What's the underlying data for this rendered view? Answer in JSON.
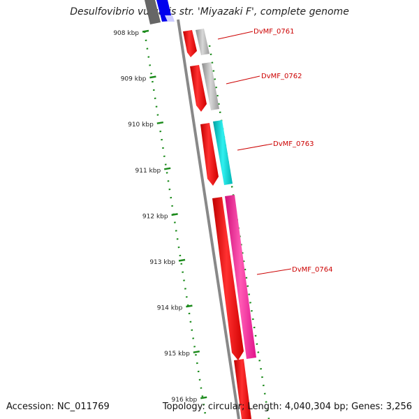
{
  "title": "Desulfovibrio vulgaris str. 'Miyazaki F', complete genome",
  "footer": {
    "accession": "Accession: NC_011769",
    "summary": "Topology: circular; Length: 4,040,304 bp; Genes: 3,256"
  },
  "axis": {
    "ticks": [
      "908 kbp",
      "909 kbp",
      "910 kbp",
      "911 kbp",
      "912 kbp",
      "913 kbp",
      "914 kbp",
      "915 kbp",
      "916 kbp"
    ]
  },
  "genes": [
    {
      "label": "DvMF_0761",
      "cds_color": "#ff0000",
      "gene_color": "#aaaaaa"
    },
    {
      "label": "DvMF_0762",
      "cds_color": "#ff0000",
      "gene_color": "#aaaaaa"
    },
    {
      "label": "DvMF_0763",
      "cds_color": "#ff0000",
      "gene_color": "#00cccc"
    },
    {
      "label": "DvMF_0764",
      "cds_color": "#ff0000",
      "gene_color": "#ff1493"
    }
  ],
  "colors": {
    "label": "#cc0000",
    "tick": "#1a8a1a",
    "backbone": "#808080"
  }
}
